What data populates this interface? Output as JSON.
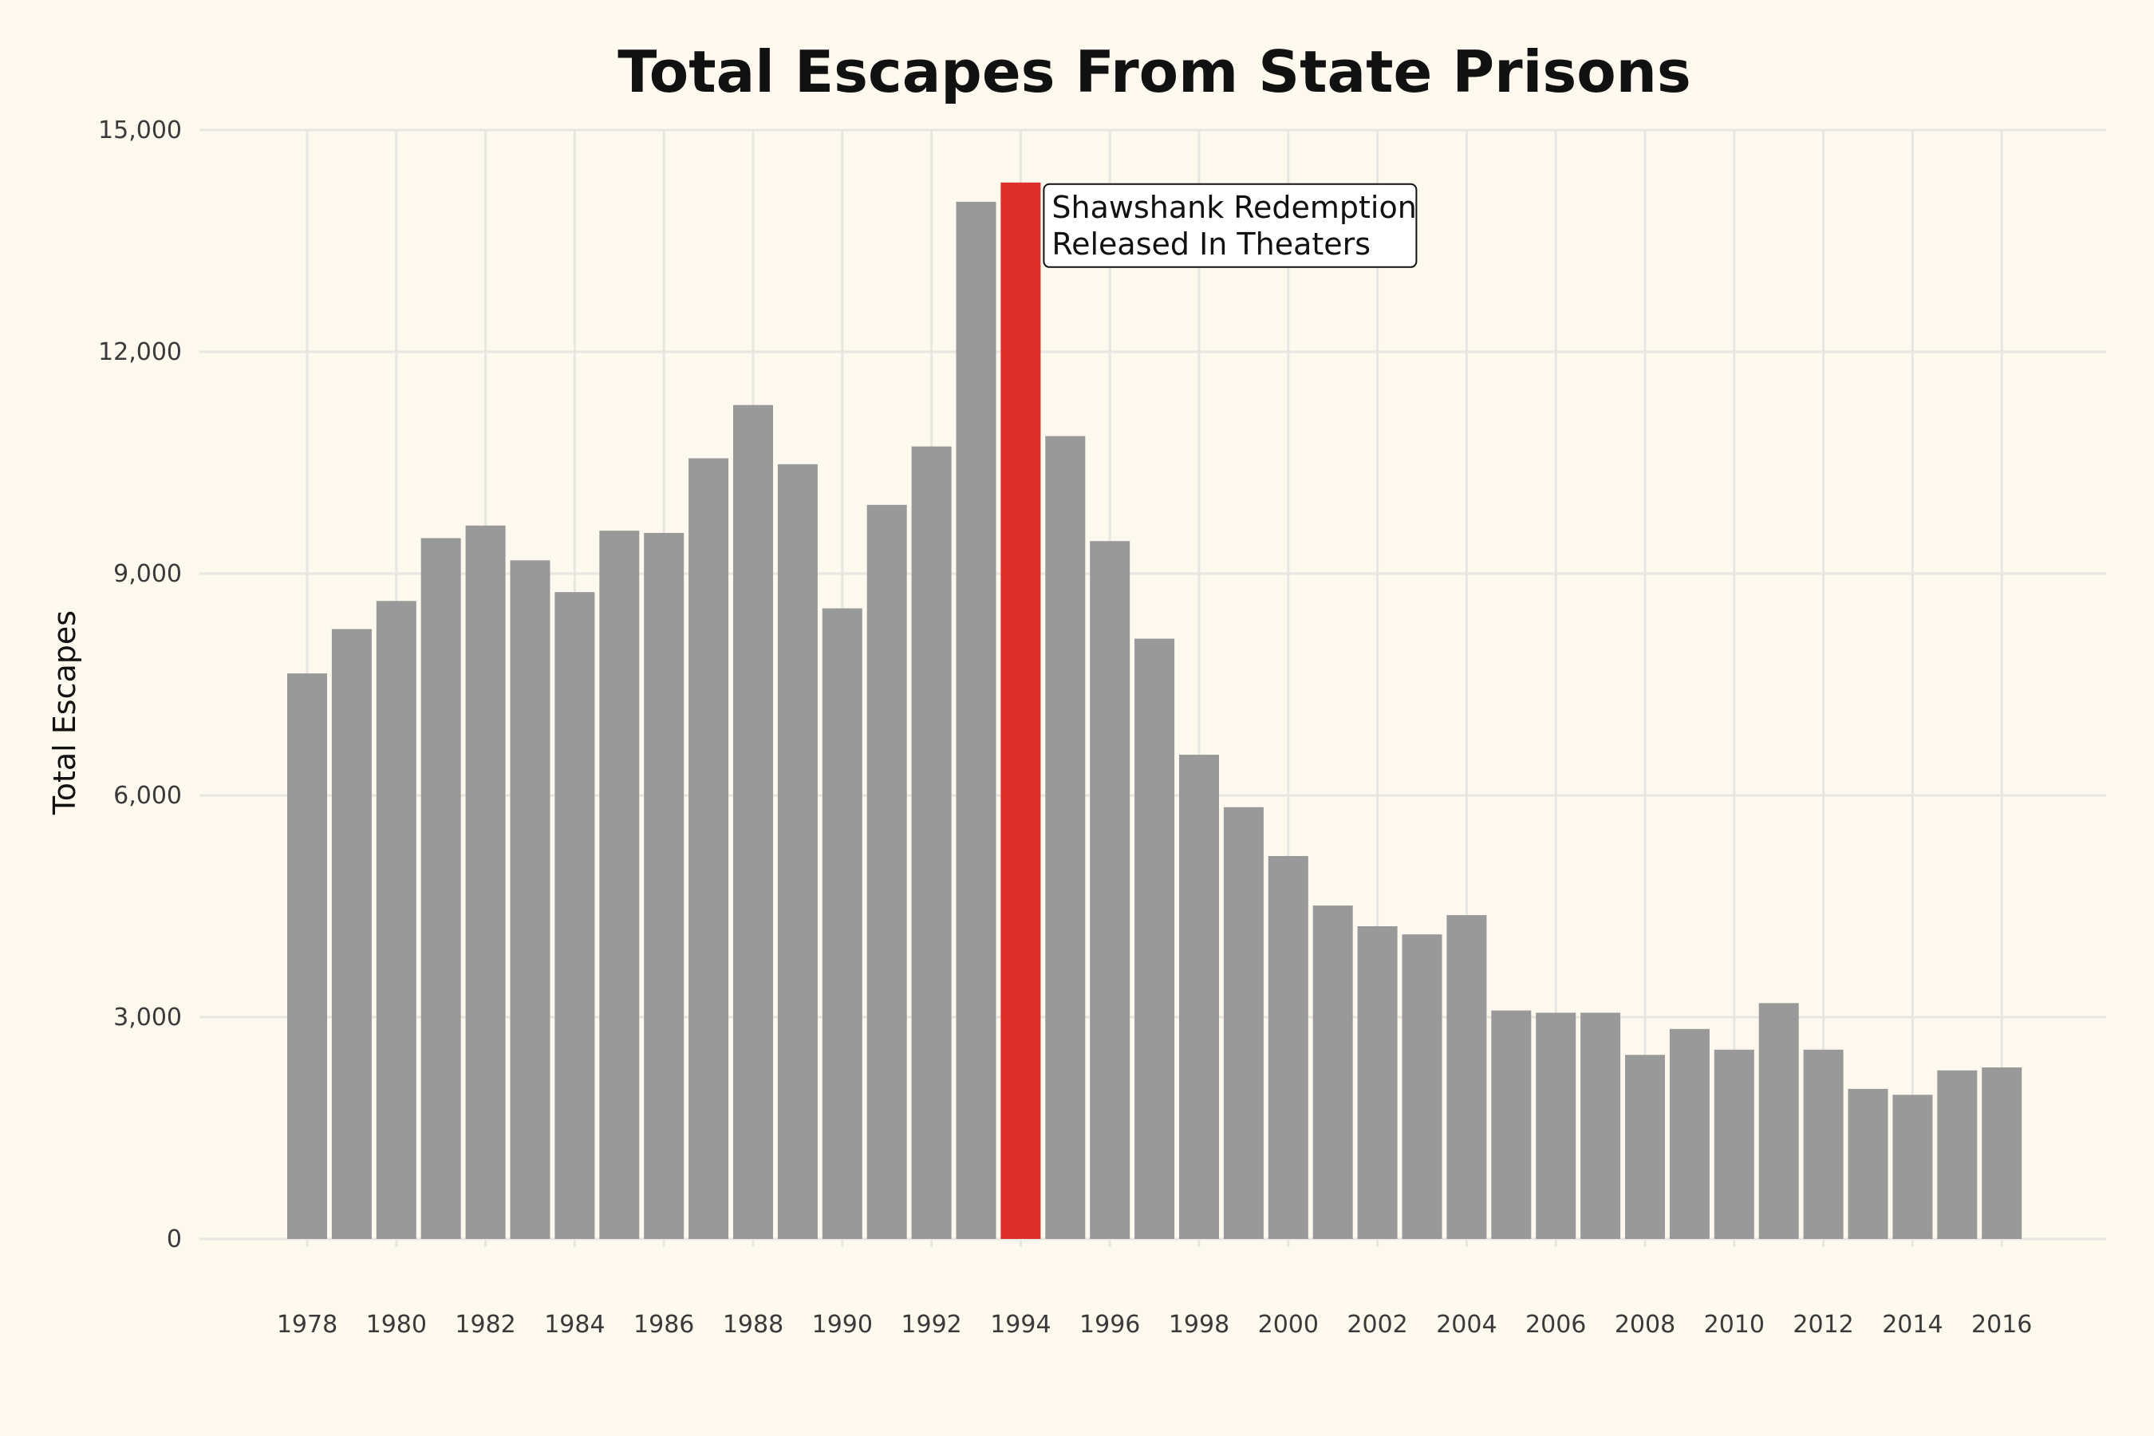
{
  "chart_data": {
    "type": "bar",
    "title": "Total Escapes From State Prisons",
    "xlabel": "",
    "ylabel": "Total Escapes",
    "ylim": [
      0,
      15000
    ],
    "y_ticks": [
      "0",
      "3,000",
      "6,000",
      "9,000",
      "12,000",
      "15,000"
    ],
    "y_tick_values": [
      0,
      3000,
      6000,
      9000,
      12000,
      15000
    ],
    "x_tick_labels": [
      "1978",
      "1980",
      "1982",
      "1984",
      "1986",
      "1988",
      "1990",
      "1992",
      "1994",
      "1996",
      "1998",
      "2000",
      "2002",
      "2004",
      "2006",
      "2008",
      "2010",
      "2012",
      "2014",
      "2016"
    ],
    "categories": [
      1978,
      1979,
      1980,
      1981,
      1982,
      1983,
      1984,
      1985,
      1986,
      1987,
      1988,
      1989,
      1990,
      1991,
      1992,
      1993,
      1994,
      1995,
      1996,
      1997,
      1998,
      1999,
      2000,
      2001,
      2002,
      2003,
      2004,
      2005,
      2006,
      2007,
      2008,
      2009,
      2010,
      2011,
      2012,
      2013,
      2014,
      2015,
      2016
    ],
    "values": [
      7650,
      8250,
      8630,
      9480,
      9650,
      9180,
      8750,
      9580,
      9550,
      10560,
      11280,
      10480,
      8530,
      9930,
      10720,
      14030,
      14290,
      10860,
      9440,
      8120,
      6550,
      5840,
      5180,
      4510,
      4230,
      4120,
      4380,
      3090,
      3060,
      3060,
      2490,
      2840,
      2560,
      3190,
      2560,
      2030,
      1950,
      2280,
      2320
    ],
    "highlight_category": 1994,
    "grid": true,
    "legend": "none",
    "colors": {
      "bar": "#999999",
      "highlight": "#dc2f2a",
      "background": "#fdf9ee",
      "grid": "#e8e6e1"
    },
    "annotation": {
      "lines": [
        "Shawshank Redemption",
        "Released In Theaters"
      ],
      "anchor_category": 1994,
      "anchor_value": 14290
    }
  }
}
